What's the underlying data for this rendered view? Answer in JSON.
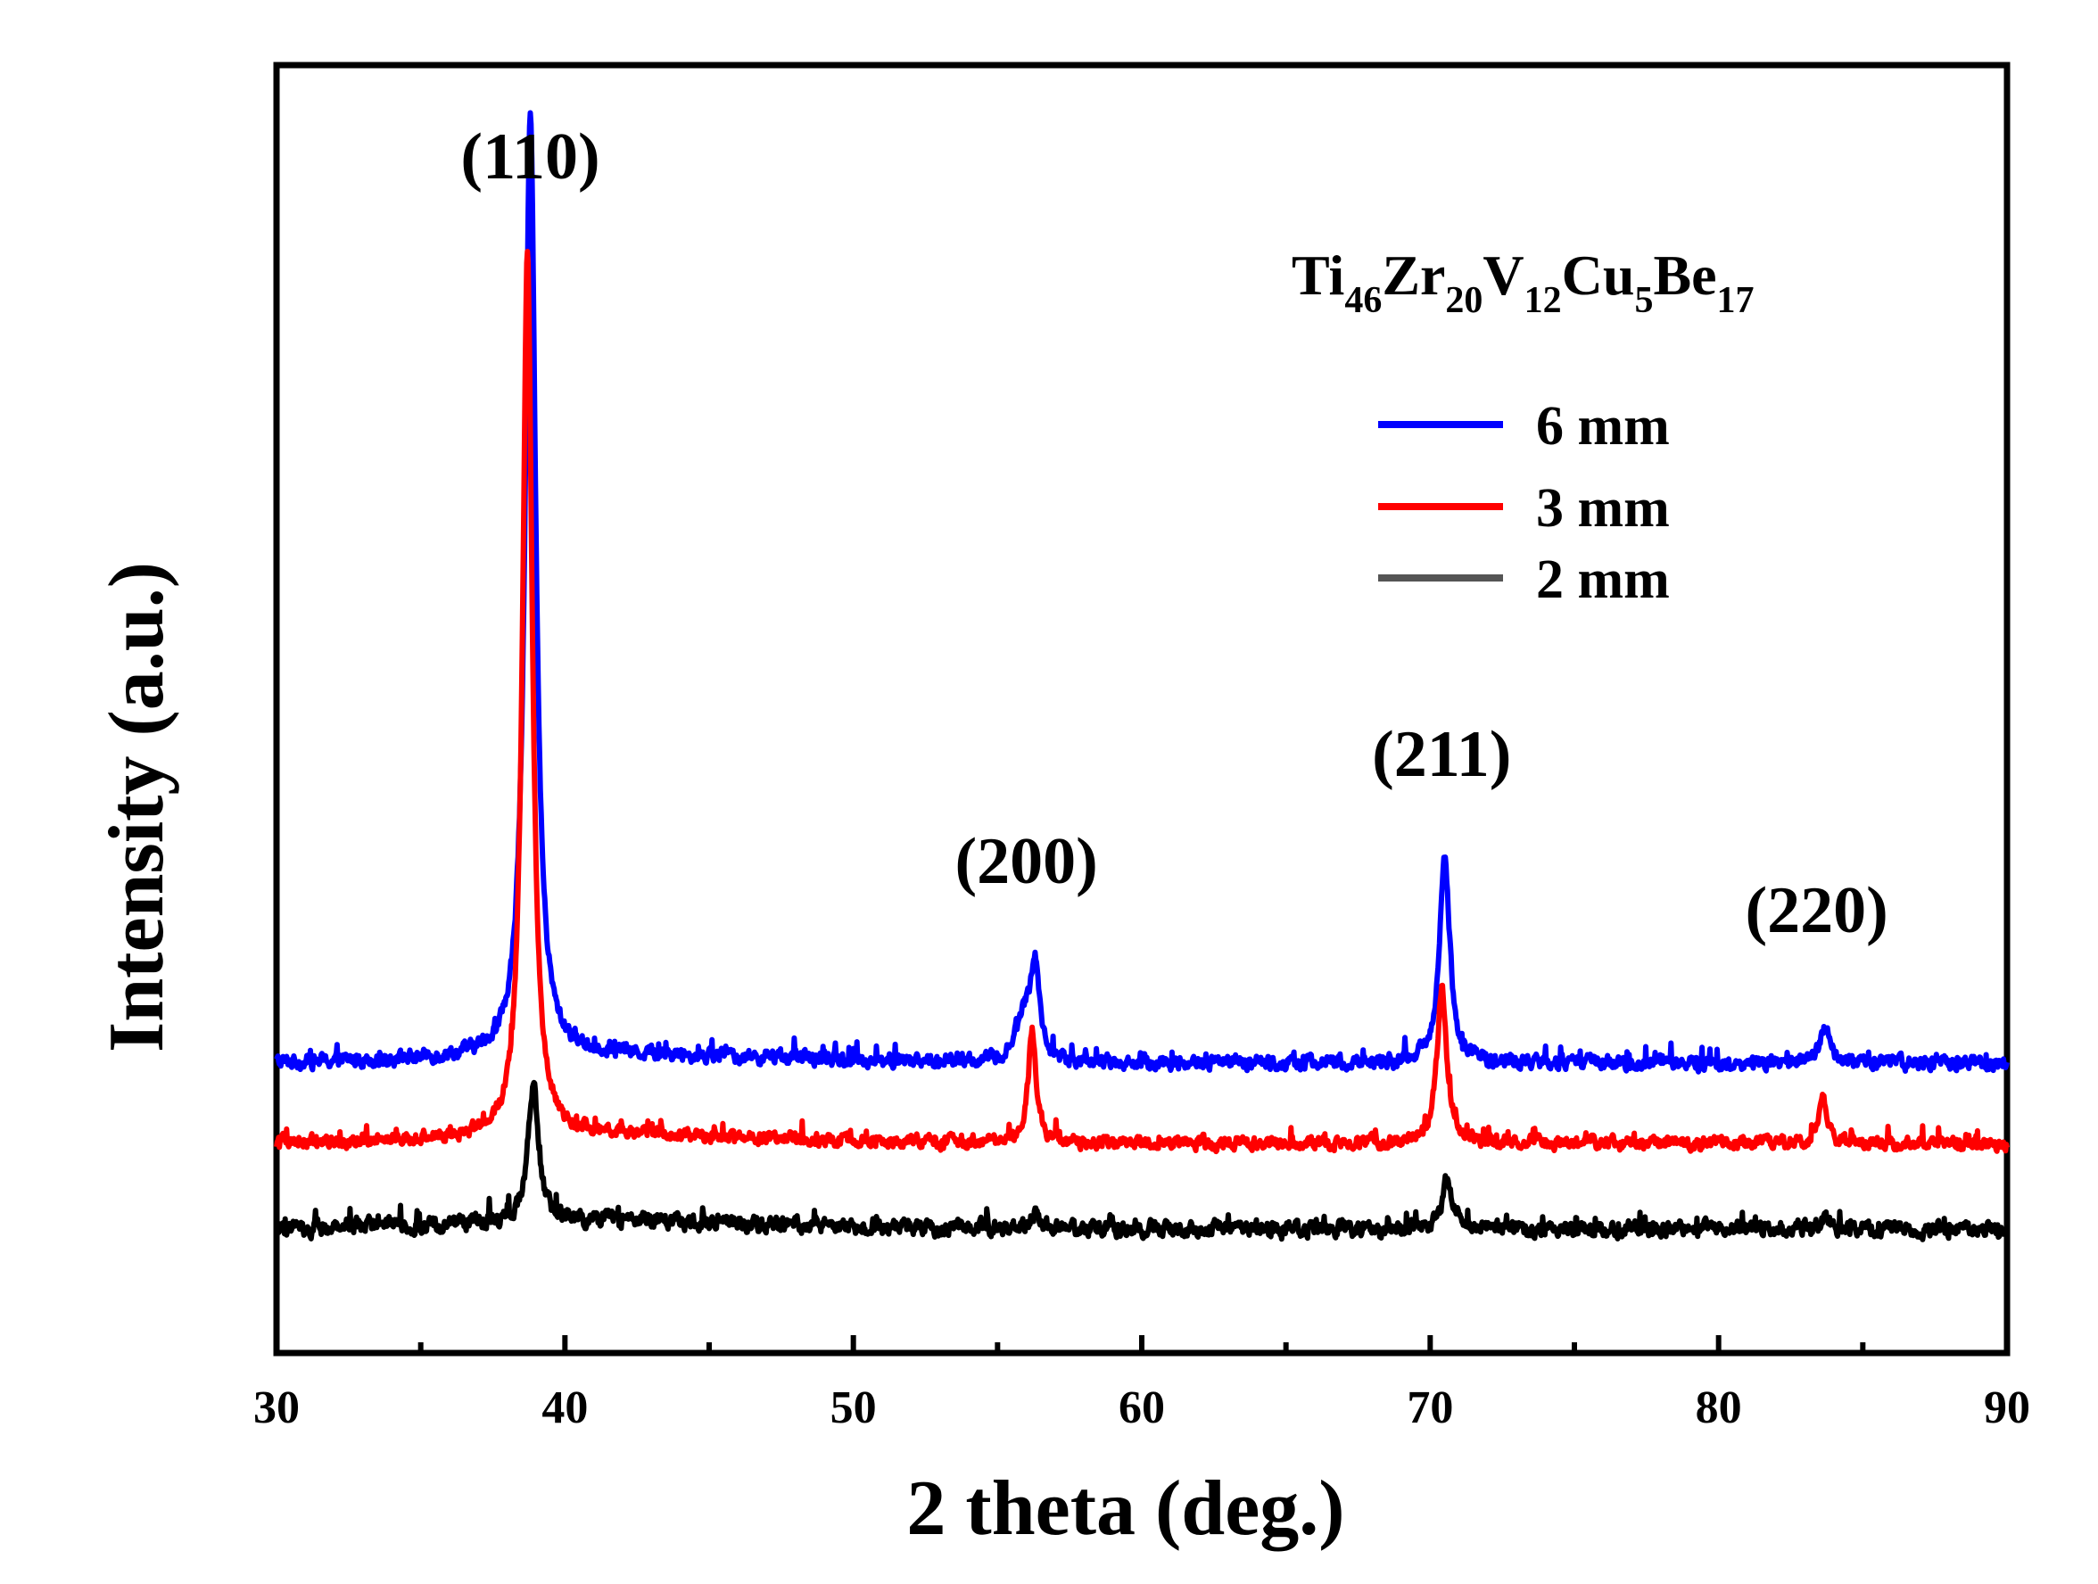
{
  "chart_data": {
    "type": "line",
    "title": "",
    "xlabel": "2 theta (deg.)",
    "ylabel": "Intensity (a.u.)",
    "xlim": [
      30,
      90
    ],
    "xticks": [
      30,
      40,
      50,
      60,
      70,
      80,
      90
    ],
    "xtick_labels": [
      "30",
      "40",
      "50",
      "60",
      "70",
      "80",
      "90"
    ],
    "yticks_shown": false,
    "composition": {
      "elements": [
        {
          "el": "Ti",
          "sub": "46"
        },
        {
          "el": "Zr",
          "sub": "20"
        },
        {
          "el": "V",
          "sub": "12"
        },
        {
          "el": "Cu",
          "sub": "5"
        },
        {
          "el": "Be",
          "sub": "17"
        }
      ]
    },
    "legend": {
      "position": "top-right"
    },
    "series": [
      {
        "name": "6 mm",
        "color": "#0000ff",
        "baseline": 30,
        "noise": 2.2,
        "peaks": [
          {
            "x": 38.8,
            "h": 170,
            "w": 0.22
          },
          {
            "x": 55.9,
            "h": 8,
            "w": 0.3
          },
          {
            "x": 56.3,
            "h": 17,
            "w": 0.18
          },
          {
            "x": 70.5,
            "h": 37,
            "w": 0.22
          },
          {
            "x": 83.7,
            "h": 7,
            "w": 0.2
          }
        ]
      },
      {
        "name": "3 mm",
        "color": "#ff0000",
        "baseline": 15.5,
        "noise": 2.0,
        "peaks": [
          {
            "x": 38.7,
            "h": 160,
            "w": 0.2
          },
          {
            "x": 56.2,
            "h": 21,
            "w": 0.16
          },
          {
            "x": 70.4,
            "h": 28,
            "w": 0.2
          },
          {
            "x": 83.6,
            "h": 8,
            "w": 0.18
          }
        ]
      },
      {
        "name": "2 mm",
        "color": "#000000",
        "baseline": 0,
        "noise": 2.4,
        "peaks": [
          {
            "x": 38.9,
            "h": 25,
            "w": 0.22
          },
          {
            "x": 56.3,
            "h": 3,
            "w": 0.2
          },
          {
            "x": 70.6,
            "h": 9,
            "w": 0.22
          },
          {
            "x": 83.7,
            "h": 2,
            "w": 0.2
          }
        ]
      }
    ],
    "legend_line_colors": {
      "6 mm": "#0000ff",
      "3 mm": "#ff0000",
      "2 mm": "#555555"
    },
    "peak_annotations": [
      {
        "label": "(110)",
        "x": 38.8
      },
      {
        "label": "(200)",
        "x": 56.0
      },
      {
        "label": "(211)",
        "x": 70.4
      },
      {
        "label": "(220)",
        "x": 83.4
      }
    ]
  }
}
